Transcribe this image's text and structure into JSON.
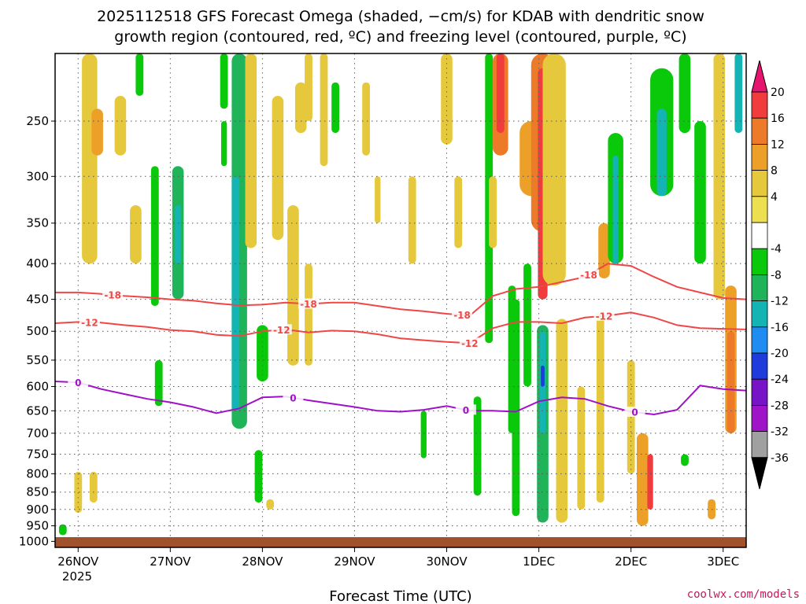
{
  "chart_data": {
    "type": "heatmap",
    "title_line1": "2025112518 GFS Forecast Omega (shaded, −cm/s) for KDAB with dendritic snow",
    "title_line2": "growth region (contoured, red, ºC) and freezing level (contoured, purple, ºC)",
    "xlabel": "Forecast Time (UTC)",
    "credit": "coolwx.com/models",
    "year_label": "2025",
    "x_ticks": [
      "26NOV",
      "27NOV",
      "28NOV",
      "29NOV",
      "30NOV",
      "1DEC",
      "2DEC",
      "3DEC"
    ],
    "x_range_hours": [
      -6,
      174
    ],
    "y_ticks": [
      250,
      300,
      350,
      400,
      450,
      500,
      550,
      600,
      650,
      700,
      750,
      800,
      850,
      900,
      950,
      1000
    ],
    "y_range_hpa": [
      200,
      1020
    ],
    "colorbar_labels": [
      "20",
      "16",
      "12",
      "8",
      "4",
      "-4",
      "-8",
      "-12",
      "-16",
      "-20",
      "-24",
      "-28",
      "-32",
      "-36"
    ],
    "colorbar_bins": [
      {
        "lo": 16,
        "hi": 20,
        "color": "#f03c3c"
      },
      {
        "lo": 12,
        "hi": 16,
        "color": "#ec7a28"
      },
      {
        "lo": 8,
        "hi": 12,
        "color": "#eca028"
      },
      {
        "lo": 4,
        "hi": 8,
        "color": "#e6c83c"
      },
      {
        "lo": 0,
        "hi": 4,
        "color": "#ede050"
      },
      {
        "lo": -4,
        "hi": 4,
        "color": "#ffffff"
      },
      {
        "lo": -8,
        "hi": -4,
        "color": "#0ac80a"
      },
      {
        "lo": -12,
        "hi": -8,
        "color": "#1fb45a"
      },
      {
        "lo": -16,
        "hi": -12,
        "color": "#14b4b4"
      },
      {
        "lo": -20,
        "hi": -16,
        "color": "#1e8cf0"
      },
      {
        "lo": -24,
        "hi": -20,
        "color": "#1e3cdc"
      },
      {
        "lo": -28,
        "hi": -24,
        "color": "#7814c8"
      },
      {
        "lo": -32,
        "hi": -28,
        "color": "#a014c8"
      },
      {
        "lo": -36,
        "hi": -32,
        "color": "#a0a0a0"
      }
    ],
    "colorbar_top_color": "#e6146e",
    "colorbar_bottom_color": "#000000",
    "contours": [
      {
        "name": "-18 isotherm",
        "label": "-18",
        "color": "#f04646",
        "hours": [
          -6,
          0,
          6,
          12,
          18,
          24,
          30,
          36,
          42,
          48,
          54,
          60,
          66,
          72,
          78,
          84,
          90,
          96,
          102,
          108,
          114,
          120,
          126,
          132,
          138,
          144,
          150,
          156,
          162,
          168,
          174
        ],
        "hpa": [
          440,
          440,
          442,
          445,
          447,
          450,
          452,
          456,
          459,
          458,
          455,
          457,
          455,
          455,
          460,
          465,
          468,
          472,
          475,
          445,
          435,
          432,
          425,
          418,
          400,
          403,
          418,
          432,
          440,
          448,
          450
        ],
        "label_hours": [
          9,
          60,
          100,
          133
        ]
      },
      {
        "name": "-12 isotherm",
        "label": "-12",
        "color": "#f04646",
        "hours": [
          -6,
          0,
          6,
          12,
          18,
          24,
          30,
          36,
          42,
          48,
          54,
          60,
          66,
          72,
          78,
          84,
          90,
          96,
          102,
          108,
          114,
          120,
          126,
          132,
          138,
          144,
          150,
          156,
          162,
          168,
          174
        ],
        "hpa": [
          487,
          485,
          486,
          490,
          493,
          498,
          500,
          506,
          508,
          500,
          497,
          502,
          499,
          500,
          505,
          512,
          515,
          518,
          520,
          495,
          485,
          485,
          487,
          478,
          475,
          470,
          478,
          490,
          495,
          496,
          497
        ],
        "label_hours": [
          3,
          53,
          102,
          137
        ]
      },
      {
        "name": "0 isotherm (freezing level)",
        "label": "0",
        "color": "#a010c8",
        "hours": [
          -6,
          0,
          6,
          12,
          18,
          24,
          30,
          36,
          42,
          48,
          54,
          60,
          66,
          72,
          78,
          84,
          90,
          96,
          102,
          108,
          114,
          120,
          126,
          132,
          138,
          144,
          150,
          156,
          162,
          168,
          174
        ],
        "hpa": [
          590,
          592,
          605,
          615,
          625,
          632,
          642,
          655,
          645,
          622,
          620,
          628,
          635,
          642,
          650,
          652,
          648,
          640,
          650,
          650,
          652,
          630,
          622,
          625,
          640,
          652,
          658,
          648,
          598,
          605,
          608
        ],
        "label_hours": [
          0,
          56,
          101,
          145
        ]
      }
    ],
    "omega_features": [
      {
        "hour": 3,
        "top": 200,
        "bottom": 400,
        "w": 4,
        "val": 6
      },
      {
        "hour": 5,
        "top": 240,
        "bottom": 280,
        "w": 3,
        "val": 10
      },
      {
        "hour": 11,
        "top": 230,
        "bottom": 280,
        "w": 3,
        "val": 6
      },
      {
        "hour": 15,
        "top": 330,
        "bottom": 400,
        "w": 3,
        "val": 5
      },
      {
        "hour": 0,
        "top": 795,
        "bottom": 910,
        "w": 2,
        "val": 5
      },
      {
        "hour": 4,
        "top": 795,
        "bottom": 880,
        "w": 2,
        "val": 5
      },
      {
        "hour": -4,
        "top": 945,
        "bottom": 980,
        "w": 2,
        "val": -8
      },
      {
        "hour": 20,
        "top": 290,
        "bottom": 460,
        "w": 2,
        "val": -7
      },
      {
        "hour": 21,
        "top": 550,
        "bottom": 640,
        "w": 2,
        "val": -7
      },
      {
        "hour": 16,
        "top": 200,
        "bottom": 230,
        "w": 2,
        "val": -7
      },
      {
        "hour": 26,
        "top": 290,
        "bottom": 450,
        "w": 3,
        "val": -9
      },
      {
        "hour": 26,
        "top": 330,
        "bottom": 400,
        "w": 1.5,
        "val": -14
      },
      {
        "hour": 38,
        "top": 200,
        "bottom": 240,
        "w": 2,
        "val": -7
      },
      {
        "hour": 38,
        "top": 250,
        "bottom": 290,
        "w": 1.5,
        "val": -7
      },
      {
        "hour": 42,
        "top": 200,
        "bottom": 690,
        "w": 4,
        "val": -9
      },
      {
        "hour": 41,
        "top": 300,
        "bottom": 650,
        "w": 2,
        "val": -14
      },
      {
        "hour": 45,
        "top": 200,
        "bottom": 380,
        "w": 3,
        "val": 6
      },
      {
        "hour": 48,
        "top": 490,
        "bottom": 590,
        "w": 3,
        "val": -7
      },
      {
        "hour": 47,
        "top": 740,
        "bottom": 880,
        "w": 2,
        "val": -7
      },
      {
        "hour": 50,
        "top": 870,
        "bottom": 900,
        "w": 2,
        "val": 5
      },
      {
        "hour": 58,
        "top": 220,
        "bottom": 260,
        "w": 3,
        "val": 6
      },
      {
        "hour": 52,
        "top": 230,
        "bottom": 370,
        "w": 3,
        "val": 5
      },
      {
        "hour": 56,
        "top": 330,
        "bottom": 560,
        "w": 3,
        "val": 6
      },
      {
        "hour": 60,
        "top": 400,
        "bottom": 560,
        "w": 2,
        "val": 5
      },
      {
        "hour": 60,
        "top": 200,
        "bottom": 250,
        "w": 2,
        "val": 5
      },
      {
        "hour": 64,
        "top": 200,
        "bottom": 290,
        "w": 2,
        "val": 6
      },
      {
        "hour": 67,
        "top": 220,
        "bottom": 260,
        "w": 2,
        "val": -7
      },
      {
        "hour": 75,
        "top": 220,
        "bottom": 280,
        "w": 2,
        "val": 6
      },
      {
        "hour": 78,
        "top": 300,
        "bottom": 350,
        "w": 1.5,
        "val": 5
      },
      {
        "hour": 87,
        "top": 300,
        "bottom": 400,
        "w": 2,
        "val": 5
      },
      {
        "hour": 90,
        "top": 650,
        "bottom": 760,
        "w": 1.5,
        "val": -7
      },
      {
        "hour": 96,
        "top": 200,
        "bottom": 270,
        "w": 3,
        "val": 6
      },
      {
        "hour": 99,
        "top": 300,
        "bottom": 380,
        "w": 2,
        "val": 6
      },
      {
        "hour": 104,
        "top": 620,
        "bottom": 860,
        "w": 2,
        "val": -7
      },
      {
        "hour": 107,
        "top": 200,
        "bottom": 520,
        "w": 2,
        "val": -7
      },
      {
        "hour": 110,
        "top": 200,
        "bottom": 280,
        "w": 4,
        "val": 12
      },
      {
        "hour": 110,
        "top": 200,
        "bottom": 260,
        "w": 2,
        "val": 18
      },
      {
        "hour": 108,
        "top": 300,
        "bottom": 380,
        "w": 2,
        "val": 5
      },
      {
        "hour": 113,
        "top": 430,
        "bottom": 700,
        "w": 2,
        "val": -7
      },
      {
        "hour": 114,
        "top": 450,
        "bottom": 920,
        "w": 2,
        "val": -7
      },
      {
        "hour": 118,
        "top": 250,
        "bottom": 320,
        "w": 6,
        "val": 10
      },
      {
        "hour": 117,
        "top": 400,
        "bottom": 600,
        "w": 2,
        "val": -8
      },
      {
        "hour": 121,
        "top": 200,
        "bottom": 360,
        "w": 6,
        "val": 12
      },
      {
        "hour": 121,
        "top": 210,
        "bottom": 450,
        "w": 2.5,
        "val": 18
      },
      {
        "hour": 121,
        "top": 490,
        "bottom": 940,
        "w": 3,
        "val": -9
      },
      {
        "hour": 121,
        "top": 500,
        "bottom": 700,
        "w": 1.5,
        "val": -16
      },
      {
        "hour": 121,
        "top": 560,
        "bottom": 600,
        "w": 1,
        "val": -22
      },
      {
        "hour": 124,
        "top": 200,
        "bottom": 430,
        "w": 6,
        "val": 6
      },
      {
        "hour": 126,
        "top": 480,
        "bottom": 940,
        "w": 3,
        "val": 6
      },
      {
        "hour": 131,
        "top": 600,
        "bottom": 900,
        "w": 2,
        "val": 5
      },
      {
        "hour": 137,
        "top": 350,
        "bottom": 420,
        "w": 3,
        "val": 10
      },
      {
        "hour": 136,
        "top": 470,
        "bottom": 880,
        "w": 2,
        "val": 6
      },
      {
        "hour": 140,
        "top": 260,
        "bottom": 400,
        "w": 4,
        "val": -8
      },
      {
        "hour": 140,
        "top": 280,
        "bottom": 400,
        "w": 1.5,
        "val": -13
      },
      {
        "hour": 144,
        "top": 550,
        "bottom": 800,
        "w": 2,
        "val": 6
      },
      {
        "hour": 147,
        "top": 700,
        "bottom": 950,
        "w": 3,
        "val": 8
      },
      {
        "hour": 149,
        "top": 750,
        "bottom": 900,
        "w": 1.5,
        "val": 18
      },
      {
        "hour": 147,
        "top": 900,
        "bottom": 950,
        "w": 2,
        "val": 10
      },
      {
        "hour": 152,
        "top": 210,
        "bottom": 320,
        "w": 6,
        "val": -8
      },
      {
        "hour": 152,
        "top": 240,
        "bottom": 320,
        "w": 2.5,
        "val": -14
      },
      {
        "hour": 158,
        "top": 200,
        "bottom": 260,
        "w": 3,
        "val": -8
      },
      {
        "hour": 162,
        "top": 250,
        "bottom": 400,
        "w": 3,
        "val": -8
      },
      {
        "hour": 158,
        "top": 750,
        "bottom": 780,
        "w": 2,
        "val": -7
      },
      {
        "hour": 165,
        "top": 870,
        "bottom": 930,
        "w": 2,
        "val": 10
      },
      {
        "hour": 167,
        "top": 200,
        "bottom": 450,
        "w": 3,
        "val": 6
      },
      {
        "hour": 170,
        "top": 430,
        "bottom": 700,
        "w": 3,
        "val": 8
      },
      {
        "hour": 170,
        "top": 500,
        "bottom": 700,
        "w": 2,
        "val": 12
      },
      {
        "hour": 172,
        "top": 200,
        "bottom": 260,
        "w": 2,
        "val": -14
      }
    ]
  }
}
